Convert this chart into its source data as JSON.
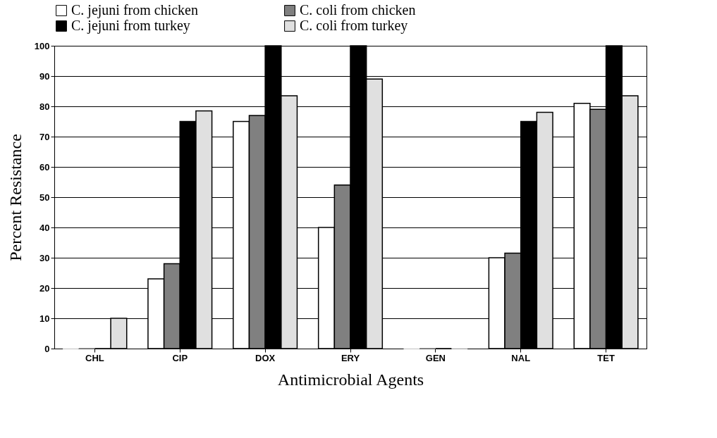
{
  "chart_data": {
    "type": "bar",
    "xlabel": "Antimicrobial Agents",
    "ylabel": "Percent Resistance",
    "categories": [
      "CHL",
      "CIP",
      "DOX",
      "ERY",
      "GEN",
      "NAL",
      "TET"
    ],
    "series": [
      {
        "name": "C. jejuni from chicken",
        "color": "#ffffff",
        "values": [
          0,
          23,
          75,
          40,
          0,
          30,
          81
        ]
      },
      {
        "name": "C. coli from chicken",
        "color": "#808080",
        "values": [
          0,
          28,
          77,
          54,
          0,
          31.5,
          79
        ]
      },
      {
        "name": "C. jejuni from turkey",
        "color": "#000000",
        "values": [
          0,
          75,
          100,
          100,
          0,
          75,
          100
        ]
      },
      {
        "name": "C. coli from turkey",
        "color": "#e0e0e0",
        "values": [
          10,
          78.5,
          83.5,
          89,
          0,
          78,
          83.5
        ]
      }
    ],
    "ylim": [
      0,
      100
    ],
    "yticks": [
      0,
      10,
      20,
      30,
      40,
      50,
      60,
      70,
      80,
      90,
      100
    ],
    "grid": "y",
    "legend": "top"
  }
}
